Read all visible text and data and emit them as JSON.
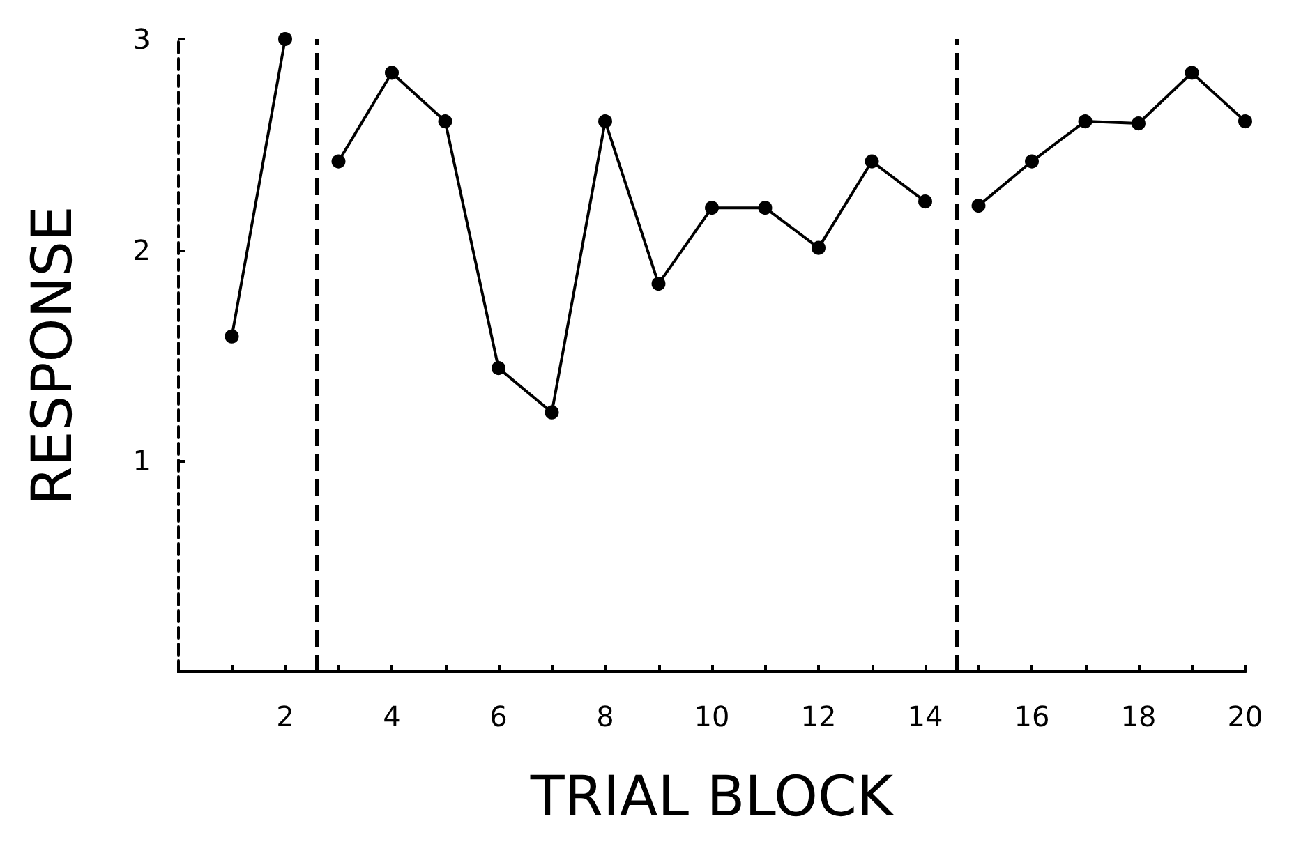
{
  "chart_data": {
    "type": "line",
    "xlabel": "TRIAL BLOCK",
    "ylabel": "RESPONSE",
    "xlim": [
      0,
      20
    ],
    "ylim": [
      0,
      3
    ],
    "xticks": [
      {
        "value": 1,
        "label": null
      },
      2,
      {
        "value": 3,
        "label": null
      },
      4,
      {
        "value": 5,
        "label": null
      },
      6,
      {
        "value": 7,
        "label": null
      },
      8,
      {
        "value": 9,
        "label": null
      },
      10,
      {
        "value": 11,
        "label": null
      },
      12,
      {
        "value": 13,
        "label": null
      },
      14,
      {
        "value": 15,
        "label": null
      },
      16,
      {
        "value": 17,
        "label": null
      },
      18,
      {
        "value": 19,
        "label": null
      },
      20
    ],
    "yticks": [
      1,
      2,
      3
    ],
    "series": [
      {
        "color": "#000000",
        "x": [
          1,
          2
        ],
        "values": [
          1.59,
          3.0
        ]
      },
      {
        "color": "#000000",
        "x": [
          3,
          4,
          5,
          6,
          7,
          8,
          9,
          10,
          11,
          12,
          13,
          14
        ],
        "values": [
          2.42,
          2.84,
          2.61,
          1.44,
          1.23,
          2.61,
          1.84,
          2.2,
          2.2,
          2.01,
          2.42,
          2.23
        ]
      },
      {
        "color": "#000000",
        "x": [
          15,
          16,
          17,
          18,
          19,
          20
        ],
        "values": [
          2.21,
          2.42,
          2.61,
          2.6,
          2.84,
          2.61
        ]
      }
    ],
    "ref_lines": [
      {
        "axis": "x",
        "value": 2.6,
        "color": "#000000",
        "line_style": "dashed"
      },
      {
        "axis": "x",
        "value": 14.6,
        "color": "#000000",
        "line_style": "dashed"
      }
    ],
    "marker": "circle",
    "line_style": "solid",
    "grid": false
  }
}
